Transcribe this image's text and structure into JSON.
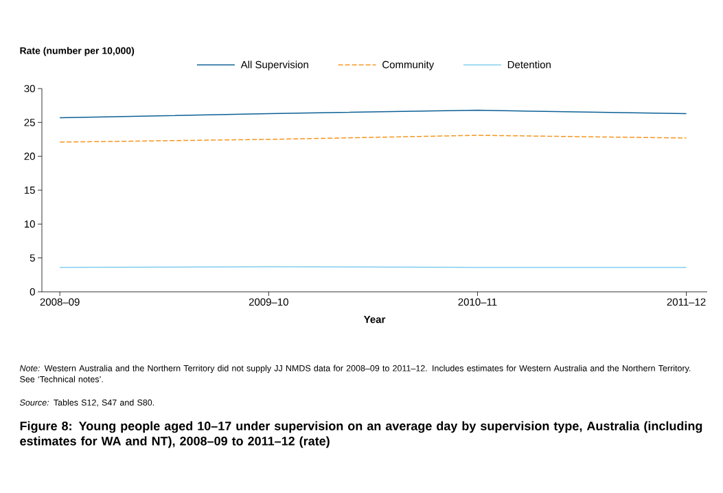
{
  "chart_data": {
    "type": "line",
    "title": "Figure 8: Young people aged 10–17 under supervision on an average day by supervision type, Australia (including estimates for WA and NT), 2008–09 to 2011–12 (rate)",
    "xlabel": "Year",
    "ylabel": "Rate (number per 10,000)",
    "categories": [
      "2008–09",
      "2009–10",
      "2010–11",
      "2011–12"
    ],
    "series": [
      {
        "name": "All Supervision",
        "color": "#0b5f95",
        "line_style": "solid",
        "values": [
          25.7,
          26.3,
          26.8,
          26.3
        ]
      },
      {
        "name": "Community",
        "color": "#f7941d",
        "line_style": "dashed",
        "values": [
          22.1,
          22.5,
          23.1,
          22.7
        ]
      },
      {
        "name": "Detention",
        "color": "#7fcdee",
        "line_style": "solid",
        "values": [
          3.6,
          3.7,
          3.6,
          3.6
        ]
      }
    ],
    "ylim": [
      0,
      30
    ],
    "yticks": [
      0,
      5,
      10,
      15,
      20,
      25,
      30
    ],
    "legend": "top",
    "grid": false,
    "annotations": [
      "*Note:* Western Australia and the Northern Territory did not supply JJ NMDS data for 2008–09 to 2011–12. Includes estimates for Western Australia and the Northern Territory. See ‘Technical notes’.",
      "*Source:* Tables S12, S47 and S80."
    ]
  }
}
